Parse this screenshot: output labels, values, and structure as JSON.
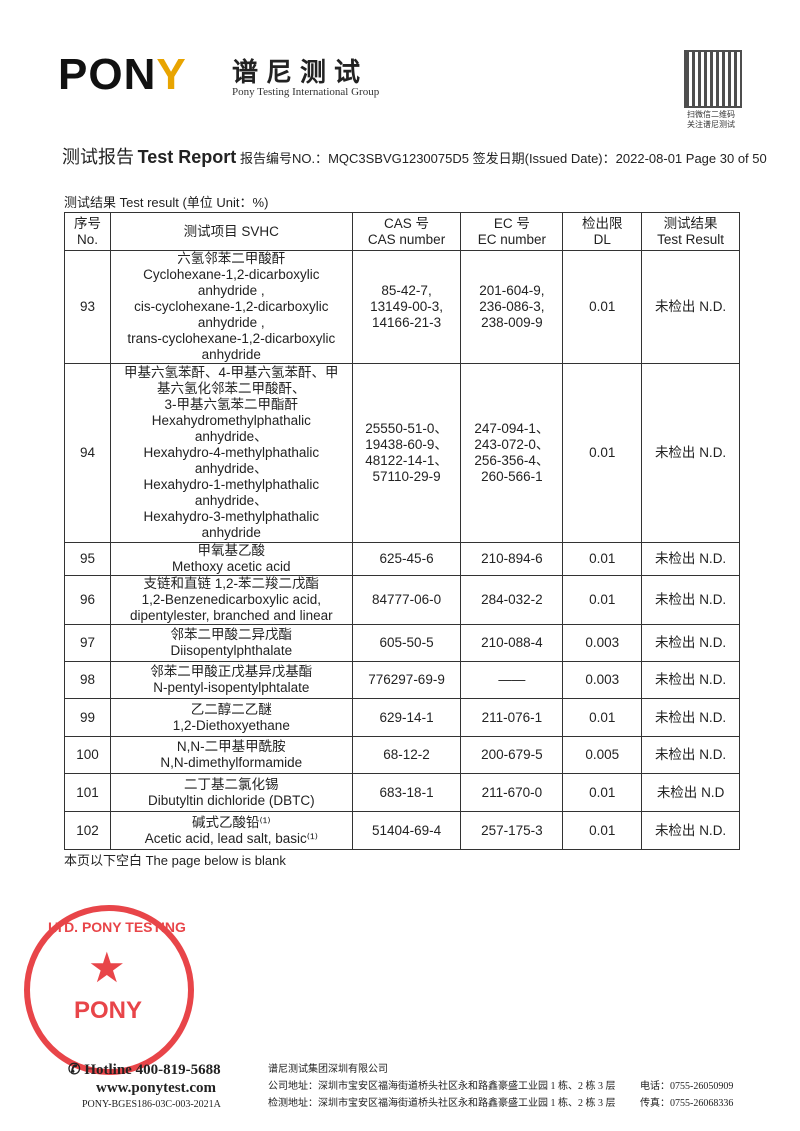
{
  "brand": {
    "logo": "PONY",
    "name_cn": "谱尼测试",
    "name_en": "Pony Testing International Group"
  },
  "qr_caption": [
    "扫微信二维码",
    "关注谱尼测试"
  ],
  "header": {
    "title_cn": "测试报告",
    "title_en": "Test Report",
    "report_no_label": "报告编号NO.：",
    "report_no": "MQC3SBVG1230075D5",
    "issued_label": "签发日期(Issued Date)：",
    "issued_date": "2022-08-01",
    "page": "Page 30 of 50"
  },
  "subtitle": "测试结果  Test result (单位 Unit：%)",
  "table": {
    "headers": [
      [
        "序号",
        "No."
      ],
      [
        "测试项目  SVHC"
      ],
      [
        "CAS 号",
        "CAS number"
      ],
      [
        "EC 号",
        "EC number"
      ],
      [
        "检出限",
        "DL"
      ],
      [
        "测试结果",
        "Test Result"
      ]
    ],
    "rows": [
      {
        "no": "93",
        "name": [
          "六氢邻苯二甲酸酐",
          "Cyclohexane-1,2-dicarboxylic",
          "anhydride ,",
          "cis-cyclohexane-1,2-dicarboxylic",
          "anhydride ,",
          "trans-cyclohexane-1,2-dicarboxylic",
          "anhydride"
        ],
        "cas": [
          "85-42-7,",
          "13149-00-3,",
          "14166-21-3"
        ],
        "ec": [
          "201-604-9,",
          "236-086-3,",
          "238-009-9"
        ],
        "dl": "0.01",
        "result": "未检出 N.D."
      },
      {
        "no": "94",
        "name": [
          "甲基六氢苯酐、4-甲基六氢苯酐、甲",
          "基六氢化邻苯二甲酸酐、",
          "3-甲基六氢苯二甲酯酐",
          "Hexahydromethylphathalic",
          "anhydride、",
          "Hexahydro-4-methylphathalic",
          "anhydride、",
          "Hexahydro-1-methylphathalic",
          "anhydride、",
          "Hexahydro-3-methylphathalic",
          "anhydride"
        ],
        "cas": [
          "25550-51-0、",
          "19438-60-9、",
          "48122-14-1、",
          "57110-29-9"
        ],
        "ec": [
          "247-094-1、",
          "243-072-0、",
          "256-356-4、",
          "260-566-1"
        ],
        "dl": "0.01",
        "result": "未检出 N.D."
      },
      {
        "no": "95",
        "name": [
          "甲氧基乙酸",
          "Methoxy acetic acid"
        ],
        "cas": [
          "625-45-6"
        ],
        "ec": [
          "210-894-6"
        ],
        "dl": "0.01",
        "result": "未检出 N.D."
      },
      {
        "no": "96",
        "name": [
          "支链和直链 1,2-苯二羧二戊酯",
          "1,2-Benzenedicarboxylic acid,",
          "dipentylester, branched and linear"
        ],
        "cas": [
          "84777-06-0"
        ],
        "ec": [
          "284-032-2"
        ],
        "dl": "0.01",
        "result": "未检出 N.D."
      },
      {
        "no": "97",
        "name": [
          "邻苯二甲酸二异戊酯",
          "Diisopentylphthalate"
        ],
        "cas": [
          "605-50-5"
        ],
        "ec": [
          "210-088-4"
        ],
        "dl": "0.003",
        "result": "未检出 N.D."
      },
      {
        "no": "98",
        "name": [
          "邻苯二甲酸正戊基异戊基酯",
          "N-pentyl-isopentylphtalate"
        ],
        "cas": [
          "776297-69-9"
        ],
        "ec": [
          "——"
        ],
        "dl": "0.003",
        "result": "未检出 N.D."
      },
      {
        "no": "99",
        "name": [
          "乙二醇二乙醚",
          "1,2-Diethoxyethane"
        ],
        "cas": [
          "629-14-1"
        ],
        "ec": [
          "211-076-1"
        ],
        "dl": "0.01",
        "result": "未检出 N.D."
      },
      {
        "no": "100",
        "name": [
          "N,N-二甲基甲酰胺",
          "N,N-dimethylformamide"
        ],
        "cas": [
          "68-12-2"
        ],
        "ec": [
          "200-679-5"
        ],
        "dl": "0.005",
        "result": "未检出 N.D."
      },
      {
        "no": "101",
        "name": [
          "二丁基二氯化锡",
          "Dibutyltin dichloride (DBTC)"
        ],
        "cas": [
          "683-18-1"
        ],
        "ec": [
          "211-670-0"
        ],
        "dl": "0.01",
        "result": "未检出 N.D"
      },
      {
        "no": "102",
        "name": [
          "碱式乙酸铅⁽¹⁾",
          "Acetic acid, lead salt, basic⁽¹⁾"
        ],
        "cas": [
          "51404-69-4"
        ],
        "ec": [
          "257-175-3"
        ],
        "dl": "0.01",
        "result": "未检出 N.D."
      }
    ]
  },
  "blank_note": "本页以下空白 The page below is blank",
  "stamp": {
    "ring_text": "LTD. PONY TESTING GROUP",
    "center": "PONY"
  },
  "footer": {
    "hotline": "Hotline 400-819-5688",
    "website": "www.ponytest.com",
    "form_code": "PONY-BGES186-03C-003-2021A",
    "company": "谱尼测试集团深圳有限公司",
    "address1": "公司地址：深圳市宝安区福海街道桥头社区永和路鑫豪盛工业园 1 栋、2 栋 3 层",
    "address2": "检测地址：深圳市宝安区福海街道桥头社区永和路鑫豪盛工业园 1 栋、2 栋 3 层",
    "tel": "电话：0755-26050909",
    "fax": "传真：0755-26068336"
  },
  "colors": {
    "logo_accent": "#e8a400",
    "stamp": "#e5252a"
  }
}
